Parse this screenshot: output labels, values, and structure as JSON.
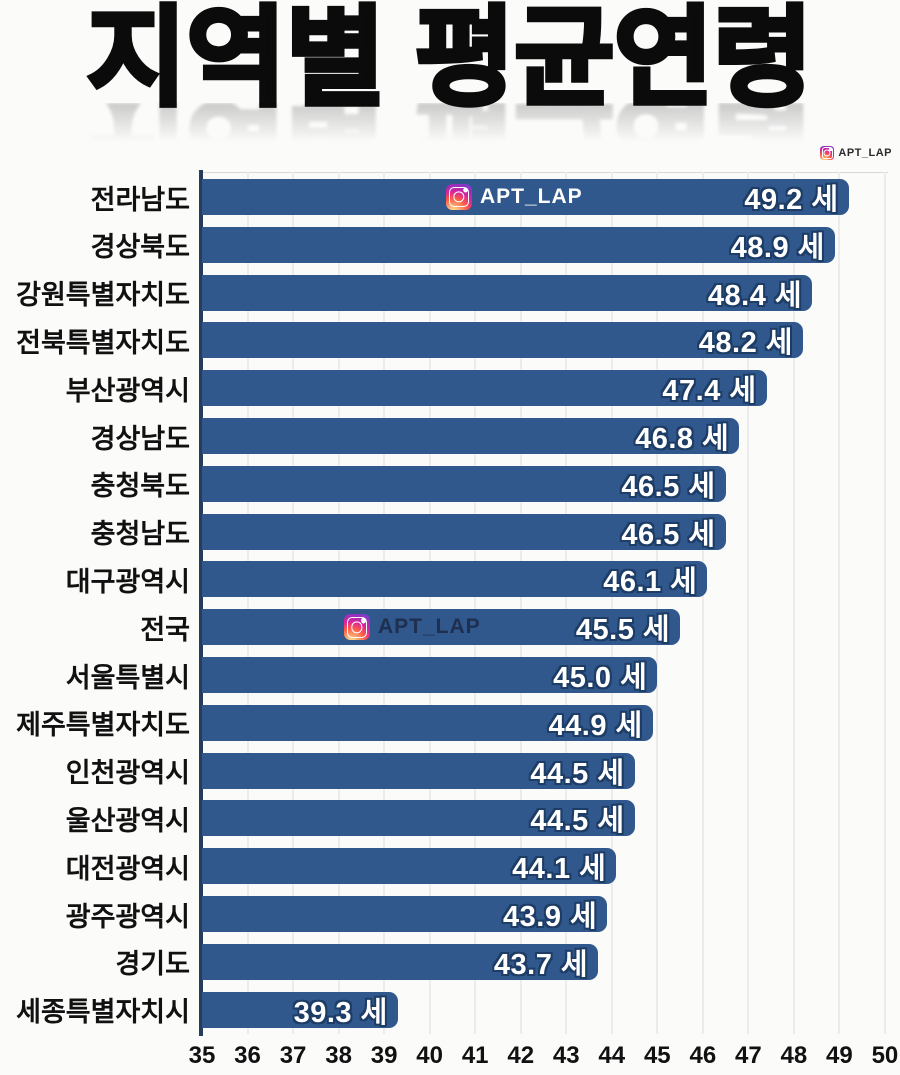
{
  "title": "지역별 평균연령",
  "header_watermark": {
    "handle": "APT_LAP",
    "icon": "instagram-icon"
  },
  "chart_data": {
    "type": "bar",
    "orientation": "horizontal",
    "title": "지역별 평균연령",
    "xlabel": "",
    "ylabel": "",
    "xlim": [
      35,
      50
    ],
    "x_ticks": [
      35,
      36,
      37,
      38,
      39,
      40,
      41,
      42,
      43,
      44,
      45,
      46,
      47,
      48,
      49,
      50
    ],
    "grid": true,
    "legend": false,
    "unit_suffix": "세",
    "categories": [
      "전라남도",
      "경상북도",
      "강원특별자치도",
      "전북특별자치도",
      "부산광역시",
      "경상남도",
      "충청북도",
      "충청남도",
      "대구광역시",
      "전국",
      "서울특별시",
      "제주특별자치도",
      "인천광역시",
      "울산광역시",
      "대전광역시",
      "광주광역시",
      "경기도",
      "세종특별자치시"
    ],
    "values": [
      49.2,
      48.9,
      48.4,
      48.2,
      47.4,
      46.8,
      46.5,
      46.5,
      46.1,
      45.5,
      45.0,
      44.9,
      44.5,
      44.5,
      44.1,
      43.9,
      43.7,
      39.3
    ],
    "value_labels": [
      "49.2 세",
      "48.9 세",
      "48.4 세",
      "48.2 세",
      "47.4 세",
      "46.8 세",
      "46.5 세",
      "46.5 세",
      "46.1 세",
      "45.5 세",
      "45.0 세",
      "44.9 세",
      "44.5 세",
      "44.5 세",
      "44.1 세",
      "43.9 세",
      "43.7 세",
      "39.3 세"
    ],
    "bar_watermarks": [
      {
        "row": "전라남도",
        "handle": "APT_LAP",
        "variant": "light-text"
      },
      {
        "row": "전국",
        "handle": "APT_LAP",
        "variant": "dark-text"
      }
    ]
  },
  "colors": {
    "bar": "#31588C",
    "value_text": "#FFFFFF",
    "value_outline": "#1D3D66",
    "axis_line": "#263C5C",
    "grid_line": "#ECECEC",
    "text": "#111111",
    "background": "#FBFBFA"
  }
}
